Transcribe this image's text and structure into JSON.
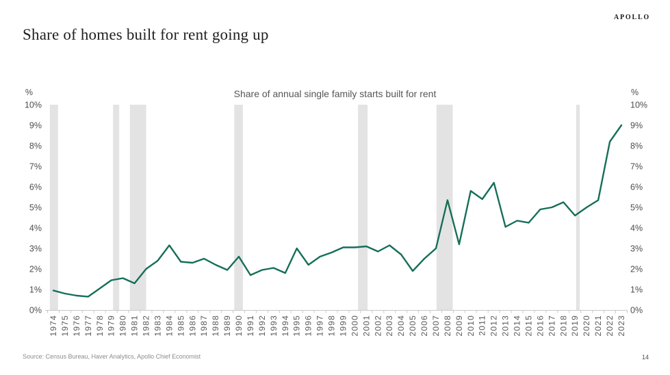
{
  "header": {
    "logo": "APOLLO",
    "title": "Share of homes built for rent going up"
  },
  "footer": {
    "source": "Source: Census Bureau, Haver Analytics, Apollo Chief Economist",
    "page_number": "14"
  },
  "chart_data": {
    "type": "line",
    "title": "Share of annual single family starts built for rent",
    "unit_label": "%",
    "legend": "none",
    "grid": false,
    "ylim": [
      0,
      10
    ],
    "ytick_labels": [
      "0%",
      "1%",
      "2%",
      "3%",
      "4%",
      "5%",
      "6%",
      "7%",
      "8%",
      "9%",
      "10%"
    ],
    "x": [
      1974,
      1975,
      1976,
      1977,
      1978,
      1979,
      1980,
      1981,
      1982,
      1983,
      1984,
      1985,
      1986,
      1987,
      1988,
      1989,
      1990,
      1991,
      1992,
      1993,
      1994,
      1995,
      1996,
      1997,
      1998,
      1999,
      2000,
      2001,
      2002,
      2003,
      2004,
      2005,
      2006,
      2007,
      2008,
      2009,
      2010,
      2011,
      2012,
      2013,
      2014,
      2015,
      2016,
      2017,
      2018,
      2019,
      2020,
      2021,
      2022,
      2023
    ],
    "series": [
      {
        "name": "Share of annual single family starts built for rent (%)",
        "values": [
          0.95,
          0.8,
          0.7,
          0.65,
          1.05,
          1.45,
          1.55,
          1.3,
          2.0,
          2.4,
          3.15,
          2.35,
          2.3,
          2.5,
          2.2,
          1.95,
          2.6,
          1.7,
          1.95,
          2.05,
          1.8,
          3.0,
          2.2,
          2.6,
          2.8,
          3.05,
          3.05,
          3.1,
          2.85,
          3.15,
          2.7,
          1.9,
          2.5,
          3.0,
          5.35,
          3.2,
          5.8,
          5.4,
          6.2,
          4.05,
          4.35,
          4.25,
          4.9,
          5.0,
          5.25,
          4.6,
          5.0,
          5.35,
          8.2,
          9.0
        ]
      }
    ],
    "recession_bands": [
      [
        1973.7,
        1974.4
      ],
      [
        1979.15,
        1979.68
      ],
      [
        1980.6,
        1982.0
      ],
      [
        1989.6,
        1990.35
      ],
      [
        2000.28,
        2001.1
      ],
      [
        2007.05,
        2008.45
      ],
      [
        2019.1,
        2019.4
      ]
    ],
    "colors": {
      "line": "#156e58",
      "band": "#e3e3e3",
      "axis": "#c8c8c8",
      "tick_label": "#595959",
      "y_label": "#4d4d4d"
    }
  }
}
